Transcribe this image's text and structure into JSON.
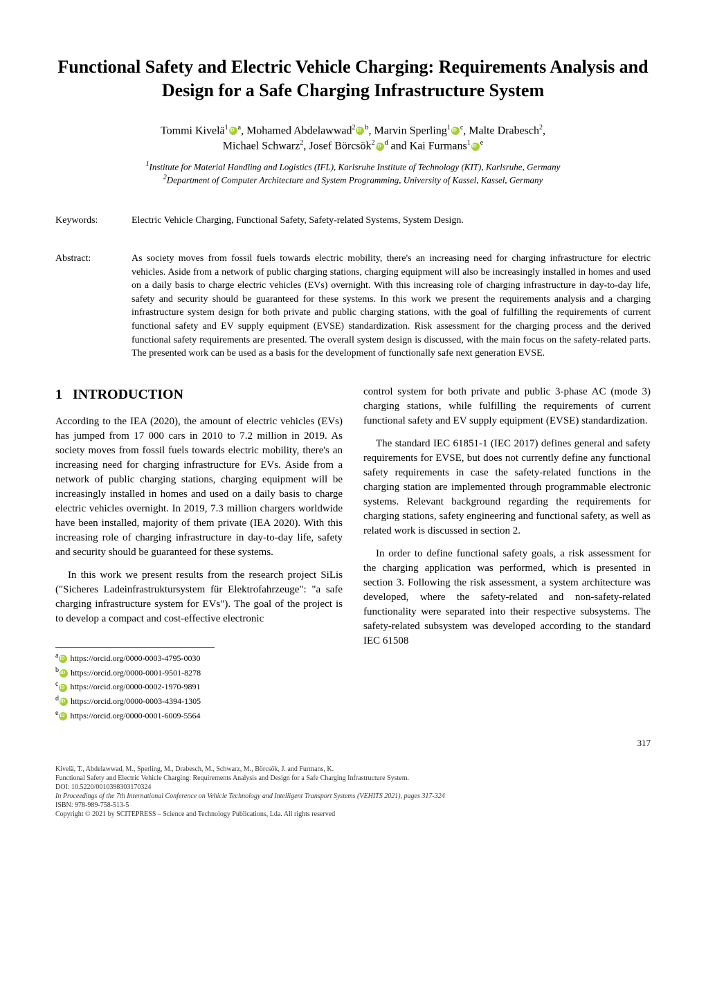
{
  "title": "Functional Safety and Electric Vehicle Charging: Requirements Analysis and Design for a Safe Charging Infrastructure System",
  "authors_line1": "Tommi Kivelä",
  "authors_sup1": "1",
  "authors_sup1b": "a",
  "authors_line1b": ", Mohamed Abdelawwad",
  "authors_sup2": "2",
  "authors_sup2b": "b",
  "authors_line1c": ", Marvin Sperling",
  "authors_sup3": "1",
  "authors_sup3b": "c",
  "authors_line1d": ", Malte Drabesch",
  "authors_sup4": "2",
  "authors_line1e": ",",
  "authors_line2a": "Michael Schwarz",
  "authors_sup5": "2",
  "authors_line2b": ", Josef Börcsök",
  "authors_sup6": "2",
  "authors_sup6b": "d",
  "authors_line2c": " and Kai Furmans",
  "authors_sup7": "1",
  "authors_sup7b": "e",
  "affiliation1": "Institute for Material Handling and Logistics (IFL), Karlsruhe Institute of Technology (KIT), Karlsruhe, Germany",
  "affiliation1_sup": "1",
  "affiliation2": "Department of Computer Architecture and System Programming, University of Kassel, Kassel, Germany",
  "affiliation2_sup": "2",
  "keywords_label": "Keywords:",
  "keywords": "Electric Vehicle Charging, Functional Safety, Safety-related Systems, System Design.",
  "abstract_label": "Abstract:",
  "abstract": "As society moves from fossil fuels towards electric mobility, there's an increasing need for charging infrastructure for electric vehicles. Aside from a network of public charging stations, charging equipment will also be increasingly installed in homes and used on a daily basis to charge electric vehicles (EVs) overnight. With this increasing role of charging infrastructure in day-to-day life, safety and security should be guaranteed for these systems. In this work we present the requirements analysis and a charging infrastructure system design for both private and public charging stations, with the goal of fulfilling the requirements of current functional safety and EV supply equipment (EVSE) standardization. Risk assessment for the charging process and the derived functional safety requirements are presented. The overall system design is discussed, with the main focus on the safety-related parts. The presented work can be used as a basis for the development of functionally safe next generation EVSE.",
  "section1_number": "1",
  "section1_title": "INTRODUCTION",
  "col1_p1": "According to the IEA (2020), the amount of electric vehicles (EVs) has jumped from 17 000 cars in 2010 to 7.2 million in 2019. As society moves from fossil fuels towards electric mobility, there's an increasing need for charging infrastructure for EVs. Aside from a network of public charging stations, charging equipment will be increasingly installed in homes and used on a daily basis to charge electric vehicles overnight. In 2019, 7.3 million chargers worldwide have been installed, majority of them private (IEA 2020). With this increasing role of charging infrastructure in day-to-day life, safety and security should be guaranteed for these systems.",
  "col1_p2": "In this work we present results from the research project SiLis (\"Sicheres Ladeinfrastruktursystem für Elektrofahrzeuge\": \"a safe charging infrastructure system for EVs\"). The goal of the project is to develop a compact and cost-effective electronic",
  "col2_p1": "control system for both private and public 3-phase AC (mode 3) charging stations, while fulfilling the requirements of current functional safety and EV supply equipment (EVSE) standardization.",
  "col2_p2": "The standard IEC 61851-1 (IEC 2017) defines general and safety requirements for EVSE, but does not currently define any functional safety requirements in case the safety-related functions in the charging station are implemented through programmable electronic systems. Relevant background regarding the requirements for charging stations, safety engineering and functional safety, as well as related work is discussed in section 2.",
  "col2_p3": "In order to define functional safety goals, a risk assessment for the charging application was performed, which is presented in section 3. Following the risk assessment, a system architecture was developed, where the safety-related and non-safety-related functionality were separated into their respective subsystems. The safety-related subsystem was developed according to the standard IEC 61508",
  "orcid_a_label": "a",
  "orcid_a": "https://orcid.org/0000-0003-4795-0030",
  "orcid_b_label": "b",
  "orcid_b": "https://orcid.org/0000-0001-9501-8278",
  "orcid_c_label": "c",
  "orcid_c": "https://orcid.org/0000-0002-1970-9891",
  "orcid_d_label": "d",
  "orcid_d": "https://orcid.org/0000-0003-4394-1305",
  "orcid_e_label": "e",
  "orcid_e": "https://orcid.org/0000-0001-6009-5564",
  "page_number": "317",
  "footer_line1": "Kivelä, T., Abdelawwad, M., Sperling, M., Drabesch, M., Schwarz, M., Börcsök, J. and Furmans, K.",
  "footer_line2": "Functional Safety and Electric Vehicle Charging: Requirements Analysis and Design for a Safe Charging Infrastructure System.",
  "footer_line3": "DOI: 10.5220/0010398303170324",
  "footer_line4": "In Proceedings of the 7th International Conference on Vehicle Technology and Intelligent Transport Systems (VEHITS 2021), pages 317-324",
  "footer_line5": "ISBN: 978-989-758-513-5",
  "footer_line6": "Copyright © 2021 by SCITEPRESS – Science and Technology Publications, Lda. All rights reserved"
}
